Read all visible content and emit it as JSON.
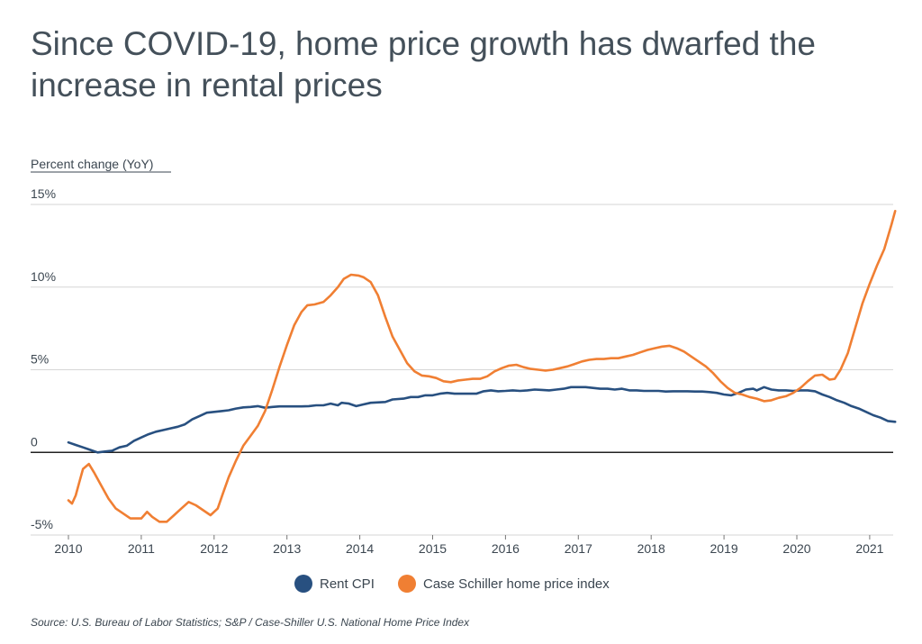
{
  "chart_data": {
    "type": "line",
    "title": "Since COVID-19, home price growth has dwarfed the increase in rental prices",
    "ylabel": "Percent change (YoY)",
    "xlabel": "",
    "ylim": [
      -5,
      15
    ],
    "xlim": [
      2010,
      2021.3
    ],
    "y_ticks": [
      {
        "value": 15,
        "label": "15%"
      },
      {
        "value": 10,
        "label": "10%"
      },
      {
        "value": 5,
        "label": "5%"
      },
      {
        "value": 0,
        "label": "0"
      },
      {
        "value": -5,
        "label": "-5%"
      }
    ],
    "x_ticks": [
      {
        "value": 2010,
        "label": "2010"
      },
      {
        "value": 2011,
        "label": "2011"
      },
      {
        "value": 2012,
        "label": "2012"
      },
      {
        "value": 2013,
        "label": "2013"
      },
      {
        "value": 2014,
        "label": "2014"
      },
      {
        "value": 2015,
        "label": "2015"
      },
      {
        "value": 2016,
        "label": "2016"
      },
      {
        "value": 2017,
        "label": "2017"
      },
      {
        "value": 2018,
        "label": "2018"
      },
      {
        "value": 2019,
        "label": "2019"
      },
      {
        "value": 2020,
        "label": "2020"
      },
      {
        "value": 2021,
        "label": "2021"
      }
    ],
    "series": [
      {
        "name": "Rent CPI",
        "color": "#285080",
        "points": [
          [
            2010.0,
            0.6
          ],
          [
            2010.1,
            0.45
          ],
          [
            2010.2,
            0.3
          ],
          [
            2010.3,
            0.15
          ],
          [
            2010.4,
            0.0
          ],
          [
            2010.5,
            0.05
          ],
          [
            2010.6,
            0.1
          ],
          [
            2010.7,
            0.3
          ],
          [
            2010.8,
            0.4
          ],
          [
            2010.9,
            0.7
          ],
          [
            2011.0,
            0.9
          ],
          [
            2011.1,
            1.1
          ],
          [
            2011.2,
            1.25
          ],
          [
            2011.3,
            1.35
          ],
          [
            2011.4,
            1.45
          ],
          [
            2011.5,
            1.55
          ],
          [
            2011.6,
            1.7
          ],
          [
            2011.7,
            2.0
          ],
          [
            2011.8,
            2.2
          ],
          [
            2011.9,
            2.4
          ],
          [
            2012.0,
            2.45
          ],
          [
            2012.1,
            2.5
          ],
          [
            2012.2,
            2.55
          ],
          [
            2012.3,
            2.65
          ],
          [
            2012.4,
            2.72
          ],
          [
            2012.5,
            2.75
          ],
          [
            2012.6,
            2.8
          ],
          [
            2012.7,
            2.7
          ],
          [
            2012.8,
            2.75
          ],
          [
            2012.9,
            2.78
          ],
          [
            2013.0,
            2.78
          ],
          [
            2013.2,
            2.78
          ],
          [
            2013.3,
            2.8
          ],
          [
            2013.4,
            2.85
          ],
          [
            2013.5,
            2.85
          ],
          [
            2013.6,
            2.95
          ],
          [
            2013.7,
            2.85
          ],
          [
            2013.75,
            3.0
          ],
          [
            2013.85,
            2.95
          ],
          [
            2013.95,
            2.8
          ],
          [
            2014.05,
            2.9
          ],
          [
            2014.15,
            3.0
          ],
          [
            2014.35,
            3.05
          ],
          [
            2014.45,
            3.2
          ],
          [
            2014.6,
            3.25
          ],
          [
            2014.7,
            3.35
          ],
          [
            2014.8,
            3.35
          ],
          [
            2014.9,
            3.45
          ],
          [
            2015.0,
            3.45
          ],
          [
            2015.1,
            3.55
          ],
          [
            2015.2,
            3.6
          ],
          [
            2015.3,
            3.55
          ],
          [
            2015.5,
            3.55
          ],
          [
            2015.6,
            3.55
          ],
          [
            2015.7,
            3.7
          ],
          [
            2015.8,
            3.75
          ],
          [
            2015.9,
            3.7
          ],
          [
            2016.0,
            3.72
          ],
          [
            2016.1,
            3.75
          ],
          [
            2016.2,
            3.72
          ],
          [
            2016.3,
            3.75
          ],
          [
            2016.4,
            3.8
          ],
          [
            2016.5,
            3.78
          ],
          [
            2016.6,
            3.75
          ],
          [
            2016.7,
            3.8
          ],
          [
            2016.8,
            3.85
          ],
          [
            2016.9,
            3.95
          ],
          [
            2017.0,
            3.95
          ],
          [
            2017.1,
            3.95
          ],
          [
            2017.2,
            3.9
          ],
          [
            2017.3,
            3.85
          ],
          [
            2017.4,
            3.85
          ],
          [
            2017.5,
            3.8
          ],
          [
            2017.6,
            3.85
          ],
          [
            2017.7,
            3.75
          ],
          [
            2017.8,
            3.75
          ],
          [
            2017.9,
            3.72
          ],
          [
            2018.0,
            3.72
          ],
          [
            2018.1,
            3.72
          ],
          [
            2018.2,
            3.68
          ],
          [
            2018.3,
            3.7
          ],
          [
            2018.5,
            3.7
          ],
          [
            2018.6,
            3.68
          ],
          [
            2018.7,
            3.68
          ],
          [
            2018.8,
            3.65
          ],
          [
            2018.9,
            3.6
          ],
          [
            2019.0,
            3.5
          ],
          [
            2019.1,
            3.45
          ],
          [
            2019.2,
            3.6
          ],
          [
            2019.3,
            3.8
          ],
          [
            2019.4,
            3.85
          ],
          [
            2019.45,
            3.75
          ],
          [
            2019.55,
            3.95
          ],
          [
            2019.65,
            3.8
          ],
          [
            2019.75,
            3.75
          ],
          [
            2019.85,
            3.75
          ],
          [
            2019.95,
            3.72
          ],
          [
            2020.05,
            3.75
          ],
          [
            2020.15,
            3.75
          ],
          [
            2020.25,
            3.7
          ],
          [
            2020.35,
            3.5
          ],
          [
            2020.45,
            3.35
          ],
          [
            2020.55,
            3.15
          ],
          [
            2020.65,
            3.0
          ],
          [
            2020.75,
            2.8
          ],
          [
            2020.85,
            2.65
          ],
          [
            2020.95,
            2.45
          ],
          [
            2021.05,
            2.25
          ],
          [
            2021.15,
            2.1
          ],
          [
            2021.25,
            1.9
          ],
          [
            2021.35,
            1.85
          ]
        ]
      },
      {
        "name": "Case Schiller home price index",
        "color": "#f07f33",
        "points": [
          [
            2010.0,
            -2.9
          ],
          [
            2010.05,
            -3.1
          ],
          [
            2010.1,
            -2.6
          ],
          [
            2010.15,
            -1.8
          ],
          [
            2010.2,
            -1.0
          ],
          [
            2010.28,
            -0.7
          ],
          [
            2010.35,
            -1.2
          ],
          [
            2010.45,
            -2.0
          ],
          [
            2010.55,
            -2.8
          ],
          [
            2010.65,
            -3.4
          ],
          [
            2010.75,
            -3.7
          ],
          [
            2010.85,
            -4.0
          ],
          [
            2011.0,
            -4.0
          ],
          [
            2011.08,
            -3.6
          ],
          [
            2011.15,
            -3.9
          ],
          [
            2011.25,
            -4.2
          ],
          [
            2011.35,
            -4.2
          ],
          [
            2011.45,
            -3.8
          ],
          [
            2011.55,
            -3.4
          ],
          [
            2011.65,
            -3.0
          ],
          [
            2011.75,
            -3.2
          ],
          [
            2011.85,
            -3.5
          ],
          [
            2011.95,
            -3.8
          ],
          [
            2012.05,
            -3.4
          ],
          [
            2012.12,
            -2.5
          ],
          [
            2012.2,
            -1.5
          ],
          [
            2012.3,
            -0.5
          ],
          [
            2012.4,
            0.4
          ],
          [
            2012.5,
            1.0
          ],
          [
            2012.6,
            1.6
          ],
          [
            2012.7,
            2.5
          ],
          [
            2012.8,
            3.8
          ],
          [
            2012.9,
            5.2
          ],
          [
            2013.0,
            6.5
          ],
          [
            2013.1,
            7.7
          ],
          [
            2013.2,
            8.5
          ],
          [
            2013.28,
            8.9
          ],
          [
            2013.38,
            8.95
          ],
          [
            2013.5,
            9.1
          ],
          [
            2013.6,
            9.5
          ],
          [
            2013.7,
            10.0
          ],
          [
            2013.78,
            10.5
          ],
          [
            2013.88,
            10.75
          ],
          [
            2013.98,
            10.7
          ],
          [
            2014.05,
            10.6
          ],
          [
            2014.15,
            10.3
          ],
          [
            2014.25,
            9.5
          ],
          [
            2014.35,
            8.2
          ],
          [
            2014.45,
            7.0
          ],
          [
            2014.55,
            6.2
          ],
          [
            2014.65,
            5.4
          ],
          [
            2014.75,
            4.9
          ],
          [
            2014.85,
            4.65
          ],
          [
            2014.95,
            4.6
          ],
          [
            2015.05,
            4.5
          ],
          [
            2015.15,
            4.3
          ],
          [
            2015.25,
            4.25
          ],
          [
            2015.35,
            4.35
          ],
          [
            2015.45,
            4.4
          ],
          [
            2015.55,
            4.45
          ],
          [
            2015.65,
            4.45
          ],
          [
            2015.75,
            4.6
          ],
          [
            2015.85,
            4.9
          ],
          [
            2015.95,
            5.1
          ],
          [
            2016.05,
            5.25
          ],
          [
            2016.15,
            5.3
          ],
          [
            2016.25,
            5.15
          ],
          [
            2016.35,
            5.05
          ],
          [
            2016.45,
            5.0
          ],
          [
            2016.55,
            4.95
          ],
          [
            2016.65,
            5.0
          ],
          [
            2016.75,
            5.1
          ],
          [
            2016.85,
            5.2
          ],
          [
            2016.95,
            5.35
          ],
          [
            2017.05,
            5.5
          ],
          [
            2017.15,
            5.6
          ],
          [
            2017.25,
            5.65
          ],
          [
            2017.35,
            5.65
          ],
          [
            2017.45,
            5.7
          ],
          [
            2017.55,
            5.7
          ],
          [
            2017.65,
            5.8
          ],
          [
            2017.75,
            5.9
          ],
          [
            2017.85,
            6.05
          ],
          [
            2017.95,
            6.2
          ],
          [
            2018.05,
            6.3
          ],
          [
            2018.15,
            6.4
          ],
          [
            2018.25,
            6.45
          ],
          [
            2018.35,
            6.3
          ],
          [
            2018.45,
            6.1
          ],
          [
            2018.55,
            5.8
          ],
          [
            2018.65,
            5.5
          ],
          [
            2018.75,
            5.2
          ],
          [
            2018.85,
            4.8
          ],
          [
            2018.95,
            4.3
          ],
          [
            2019.05,
            3.9
          ],
          [
            2019.15,
            3.6
          ],
          [
            2019.25,
            3.5
          ],
          [
            2019.35,
            3.35
          ],
          [
            2019.45,
            3.25
          ],
          [
            2019.55,
            3.1
          ],
          [
            2019.65,
            3.15
          ],
          [
            2019.75,
            3.3
          ],
          [
            2019.85,
            3.4
          ],
          [
            2019.95,
            3.6
          ],
          [
            2020.05,
            3.9
          ],
          [
            2020.15,
            4.3
          ],
          [
            2020.25,
            4.65
          ],
          [
            2020.35,
            4.7
          ],
          [
            2020.45,
            4.4
          ],
          [
            2020.52,
            4.45
          ],
          [
            2020.6,
            5.0
          ],
          [
            2020.7,
            6.0
          ],
          [
            2020.8,
            7.5
          ],
          [
            2020.9,
            9.0
          ],
          [
            2021.0,
            10.2
          ],
          [
            2021.1,
            11.3
          ],
          [
            2021.2,
            12.3
          ],
          [
            2021.3,
            13.8
          ],
          [
            2021.35,
            14.6
          ]
        ]
      }
    ],
    "legend": "bottom-center"
  },
  "source_text": "Source:  U.S. Bureau of Labor Statistics; S&P / Case-Shiller U.S. National Home Price Index"
}
